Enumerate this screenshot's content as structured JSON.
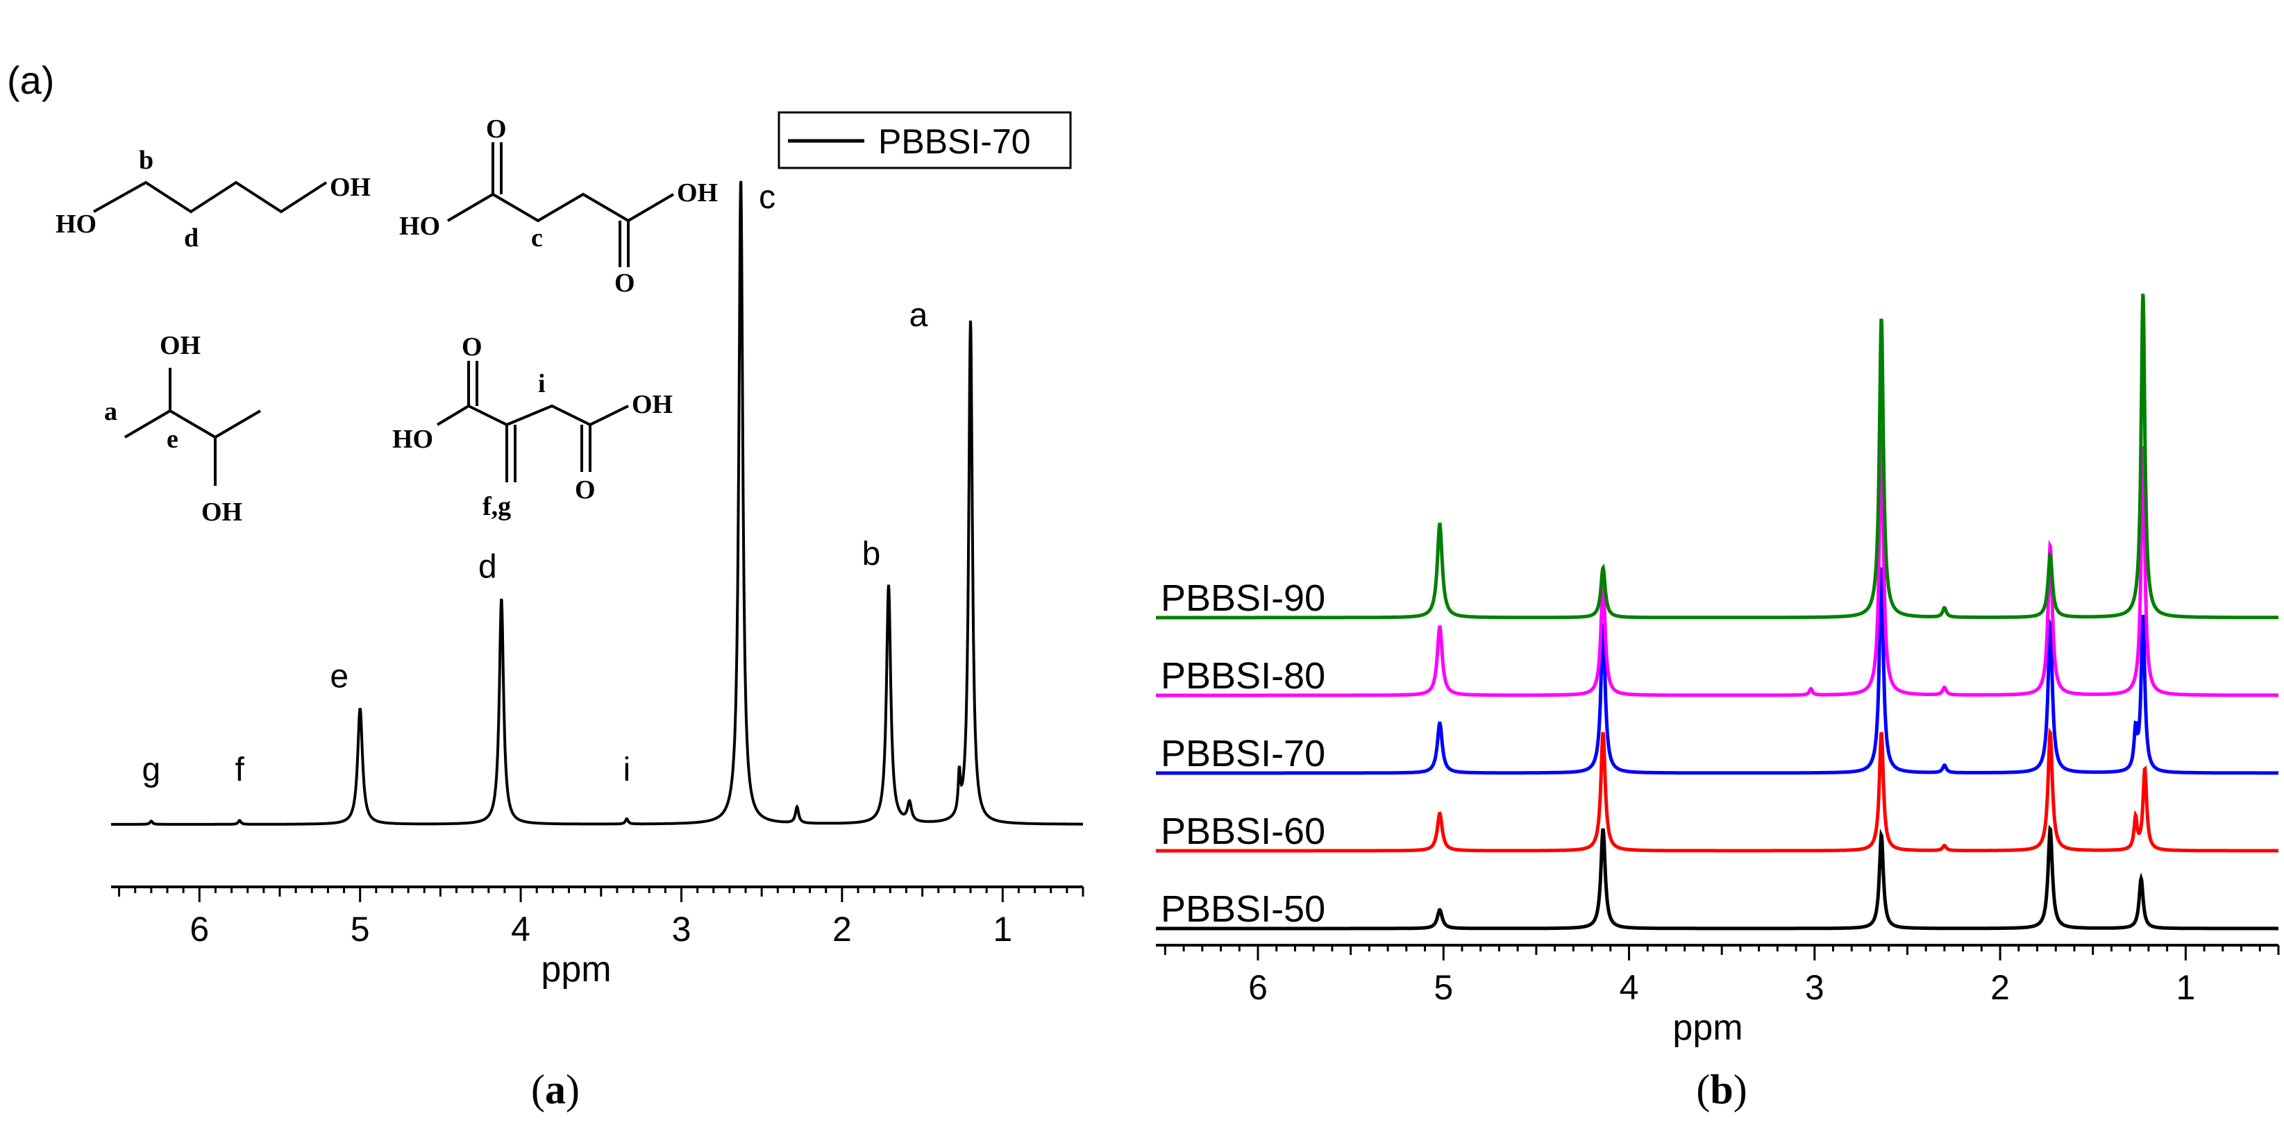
{
  "panel_a": {
    "tag": "(a)",
    "caption_open": "(",
    "caption_letter": "a",
    "caption_close": ")",
    "legend_label": "PBBSI-70",
    "peak_labels": [
      {
        "text": "g",
        "ppm": 6.3,
        "intensity": 0.02
      },
      {
        "text": "f",
        "ppm": 5.75,
        "intensity": 0.02
      },
      {
        "text": "e",
        "ppm": 5.0,
        "intensity": 0.18
      },
      {
        "text": "d",
        "ppm": 4.12,
        "intensity": 0.35
      },
      {
        "text": "i",
        "ppm": 3.34,
        "intensity": 0.01
      },
      {
        "text": "c",
        "ppm": 2.63,
        "intensity": 1.0
      },
      {
        "text": "b",
        "ppm": 1.71,
        "intensity": 0.37
      },
      {
        "text": "a",
        "ppm": 1.2,
        "intensity": 0.78
      }
    ],
    "structure_labels": {
      "butanediol": {
        "oh_left": "HO",
        "oh_right": "OH",
        "b": "b",
        "d": "d"
      },
      "succinic": {
        "ho": "HO",
        "oh": "OH",
        "o_top": "O",
        "o_bottom": "O",
        "c": "c"
      },
      "butane23diol": {
        "oh_top": "OH",
        "oh_bottom": "OH",
        "a": "a",
        "e": "e"
      },
      "itaconic": {
        "ho": "HO",
        "oh": "OH",
        "o_top": "O",
        "o_bottom": "O",
        "i": "i",
        "fg": "f,g"
      }
    }
  },
  "panel_b": {
    "caption_open": "(",
    "caption_letter": "b",
    "caption_close": ")"
  },
  "chart_data": [
    {
      "type": "line",
      "panel": "a",
      "xlabel": "ppm",
      "xlim": [
        6.55,
        0.5
      ],
      "x_reversed": true,
      "xticks": [
        6,
        5,
        4,
        3,
        2,
        1
      ],
      "series": [
        {
          "name": "PBBSI-70",
          "color": "#000000",
          "peaks": [
            {
              "ppm": 6.3,
              "intensity": 0.005,
              "width": 0.01
            },
            {
              "ppm": 5.75,
              "intensity": 0.006,
              "width": 0.01
            },
            {
              "ppm": 5.0,
              "intensity": 0.18,
              "width": 0.018
            },
            {
              "ppm": 4.12,
              "intensity": 0.35,
              "width": 0.016
            },
            {
              "ppm": 3.34,
              "intensity": 0.008,
              "width": 0.01
            },
            {
              "ppm": 2.63,
              "intensity": 1.0,
              "width": 0.015
            },
            {
              "ppm": 2.28,
              "intensity": 0.025,
              "width": 0.012
            },
            {
              "ppm": 1.71,
              "intensity": 0.37,
              "width": 0.016
            },
            {
              "ppm": 1.58,
              "intensity": 0.03,
              "width": 0.015
            },
            {
              "ppm": 1.27,
              "intensity": 0.06,
              "width": 0.008
            },
            {
              "ppm": 1.2,
              "intensity": 0.78,
              "width": 0.014
            }
          ]
        }
      ]
    },
    {
      "type": "line",
      "panel": "b",
      "xlabel": "ppm",
      "xlim": [
        6.55,
        0.5
      ],
      "x_reversed": true,
      "xticks": [
        6,
        5,
        4,
        3,
        2,
        1
      ],
      "series": [
        {
          "name": "PBBSI-50",
          "color": "#000000",
          "peaks": [
            {
              "ppm": 5.02,
              "intensity": 0.03,
              "width": 0.016
            },
            {
              "ppm": 4.14,
              "intensity": 0.16,
              "width": 0.014
            },
            {
              "ppm": 2.64,
              "intensity": 0.15,
              "width": 0.013
            },
            {
              "ppm": 1.73,
              "intensity": 0.16,
              "width": 0.014
            },
            {
              "ppm": 1.24,
              "intensity": 0.08,
              "width": 0.013
            }
          ]
        },
        {
          "name": "PBBSI-60",
          "color": "#ff0000",
          "peaks": [
            {
              "ppm": 5.02,
              "intensity": 0.06,
              "width": 0.016
            },
            {
              "ppm": 4.14,
              "intensity": 0.19,
              "width": 0.014
            },
            {
              "ppm": 2.64,
              "intensity": 0.19,
              "width": 0.013
            },
            {
              "ppm": 2.3,
              "intensity": 0.008,
              "width": 0.012
            },
            {
              "ppm": 1.73,
              "intensity": 0.19,
              "width": 0.014
            },
            {
              "ppm": 1.27,
              "intensity": 0.05,
              "width": 0.01
            },
            {
              "ppm": 1.22,
              "intensity": 0.13,
              "width": 0.012
            }
          ]
        },
        {
          "name": "PBBSI-70",
          "color": "#0000ff",
          "peaks": [
            {
              "ppm": 5.02,
              "intensity": 0.08,
              "width": 0.016
            },
            {
              "ppm": 4.14,
              "intensity": 0.24,
              "width": 0.014
            },
            {
              "ppm": 2.64,
              "intensity": 0.33,
              "width": 0.013
            },
            {
              "ppm": 2.3,
              "intensity": 0.012,
              "width": 0.012
            },
            {
              "ppm": 1.73,
              "intensity": 0.24,
              "width": 0.014
            },
            {
              "ppm": 1.27,
              "intensity": 0.06,
              "width": 0.01
            },
            {
              "ppm": 1.23,
              "intensity": 0.25,
              "width": 0.012
            }
          ]
        },
        {
          "name": "PBBSI-80",
          "color": "#ff00ff",
          "peaks": [
            {
              "ppm": 5.02,
              "intensity": 0.11,
              "width": 0.016
            },
            {
              "ppm": 4.14,
              "intensity": 0.18,
              "width": 0.014
            },
            {
              "ppm": 3.02,
              "intensity": 0.01,
              "width": 0.01
            },
            {
              "ppm": 2.64,
              "intensity": 0.43,
              "width": 0.013
            },
            {
              "ppm": 2.3,
              "intensity": 0.012,
              "width": 0.012
            },
            {
              "ppm": 1.73,
              "intensity": 0.24,
              "width": 0.014
            },
            {
              "ppm": 1.23,
              "intensity": 0.4,
              "width": 0.012
            }
          ]
        },
        {
          "name": "PBBSI-90",
          "color": "#008000",
          "peaks": [
            {
              "ppm": 5.02,
              "intensity": 0.15,
              "width": 0.016
            },
            {
              "ppm": 4.14,
              "intensity": 0.08,
              "width": 0.014
            },
            {
              "ppm": 2.64,
              "intensity": 0.48,
              "width": 0.013
            },
            {
              "ppm": 2.3,
              "intensity": 0.015,
              "width": 0.012
            },
            {
              "ppm": 1.73,
              "intensity": 0.1,
              "width": 0.014
            },
            {
              "ppm": 1.23,
              "intensity": 0.52,
              "width": 0.012
            }
          ]
        }
      ]
    }
  ]
}
